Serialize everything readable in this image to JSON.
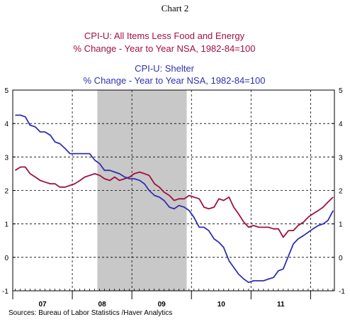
{
  "header": {
    "chart_label": "Chart 2"
  },
  "chart_data": {
    "type": "line",
    "title_lines": [
      {
        "text": "CPI-U: All Items Less Food and Energy",
        "series": 0
      },
      {
        "text": "% Change - Year to Year    NSA, 1982-84=100",
        "series": 0
      },
      {
        "text": "CPI-U: Shelter",
        "series": 1
      },
      {
        "text": "% Change - Year to Year    NSA, 1982-84=100",
        "series": 1
      }
    ],
    "source": "Sources:  Bureau of Labor Statistics /Haver Analytics",
    "ylim": [
      -1,
      5
    ],
    "yticks": [
      -1,
      0,
      1,
      2,
      3,
      4,
      5
    ],
    "xlim": [
      2006.5,
      2011.9
    ],
    "xtick_labels": [
      {
        "label": "07",
        "x": 2007.0
      },
      {
        "label": "08",
        "x": 2008.0
      },
      {
        "label": "09",
        "x": 2009.0
      },
      {
        "label": "10",
        "x": 2010.0
      },
      {
        "label": "11",
        "x": 2011.0
      }
    ],
    "year_boundaries": [
      2007.5,
      2008.5,
      2009.5,
      2010.5,
      2011.5
    ],
    "recession": [
      2007.92,
      2009.42
    ],
    "grid": "dashed",
    "colors": {
      "series_0": "#a01040",
      "series_1": "#3030b0",
      "recession": "#c8c8c8"
    },
    "series": [
      {
        "name": "CPI-U: All Items Less Food and Energy",
        "points": [
          [
            2006.54,
            2.6
          ],
          [
            2006.63,
            2.7
          ],
          [
            2006.71,
            2.7
          ],
          [
            2006.79,
            2.5
          ],
          [
            2006.88,
            2.4
          ],
          [
            2006.96,
            2.3
          ],
          [
            2007.04,
            2.25
          ],
          [
            2007.13,
            2.2
          ],
          [
            2007.21,
            2.2
          ],
          [
            2007.29,
            2.1
          ],
          [
            2007.38,
            2.1
          ],
          [
            2007.46,
            2.15
          ],
          [
            2007.54,
            2.2
          ],
          [
            2007.63,
            2.3
          ],
          [
            2007.71,
            2.4
          ],
          [
            2007.79,
            2.45
          ],
          [
            2007.88,
            2.5
          ],
          [
            2007.96,
            2.45
          ],
          [
            2008.04,
            2.35
          ],
          [
            2008.13,
            2.3
          ],
          [
            2008.21,
            2.4
          ],
          [
            2008.29,
            2.3
          ],
          [
            2008.38,
            2.35
          ],
          [
            2008.46,
            2.4
          ],
          [
            2008.54,
            2.5
          ],
          [
            2008.63,
            2.55
          ],
          [
            2008.71,
            2.5
          ],
          [
            2008.79,
            2.45
          ],
          [
            2008.88,
            2.2
          ],
          [
            2008.96,
            2.1
          ],
          [
            2009.04,
            1.95
          ],
          [
            2009.13,
            1.85
          ],
          [
            2009.21,
            1.7
          ],
          [
            2009.29,
            1.75
          ],
          [
            2009.38,
            1.75
          ],
          [
            2009.46,
            1.85
          ],
          [
            2009.54,
            1.8
          ],
          [
            2009.63,
            1.75
          ],
          [
            2009.71,
            1.5
          ],
          [
            2009.79,
            1.45
          ],
          [
            2009.88,
            1.5
          ],
          [
            2009.96,
            1.75
          ],
          [
            2010.04,
            1.7
          ],
          [
            2010.13,
            1.8
          ],
          [
            2010.21,
            1.5
          ],
          [
            2010.29,
            1.3
          ],
          [
            2010.38,
            1.05
          ],
          [
            2010.46,
            0.9
          ],
          [
            2010.54,
            0.95
          ],
          [
            2010.63,
            0.9
          ],
          [
            2010.71,
            0.9
          ],
          [
            2010.79,
            0.9
          ],
          [
            2010.88,
            0.85
          ],
          [
            2010.96,
            0.85
          ],
          [
            2011.04,
            0.6
          ],
          [
            2011.13,
            0.8
          ],
          [
            2011.21,
            0.8
          ],
          [
            2011.29,
            0.95
          ],
          [
            2011.38,
            1.05
          ],
          [
            2011.46,
            1.2
          ],
          [
            2011.54,
            1.3
          ],
          [
            2011.63,
            1.4
          ],
          [
            2011.71,
            1.5
          ],
          [
            2011.79,
            1.65
          ],
          [
            2011.88,
            1.8
          ]
        ]
      },
      {
        "name": "CPI-U: Shelter",
        "points": [
          [
            2006.54,
            4.25
          ],
          [
            2006.63,
            4.25
          ],
          [
            2006.71,
            4.2
          ],
          [
            2006.79,
            3.95
          ],
          [
            2006.88,
            3.9
          ],
          [
            2006.96,
            3.75
          ],
          [
            2007.04,
            3.75
          ],
          [
            2007.13,
            3.65
          ],
          [
            2007.21,
            3.45
          ],
          [
            2007.29,
            3.4
          ],
          [
            2007.38,
            3.25
          ],
          [
            2007.46,
            3.1
          ],
          [
            2007.54,
            3.1
          ],
          [
            2007.63,
            3.1
          ],
          [
            2007.71,
            3.1
          ],
          [
            2007.79,
            3.1
          ],
          [
            2007.88,
            2.9
          ],
          [
            2007.96,
            2.8
          ],
          [
            2008.04,
            2.6
          ],
          [
            2008.13,
            2.6
          ],
          [
            2008.21,
            2.55
          ],
          [
            2008.29,
            2.5
          ],
          [
            2008.38,
            2.4
          ],
          [
            2008.46,
            2.35
          ],
          [
            2008.54,
            2.35
          ],
          [
            2008.63,
            2.3
          ],
          [
            2008.71,
            2.2
          ],
          [
            2008.79,
            2.0
          ],
          [
            2008.88,
            1.85
          ],
          [
            2008.96,
            1.8
          ],
          [
            2009.04,
            1.7
          ],
          [
            2009.13,
            1.5
          ],
          [
            2009.21,
            1.45
          ],
          [
            2009.29,
            1.55
          ],
          [
            2009.38,
            1.5
          ],
          [
            2009.46,
            1.4
          ],
          [
            2009.54,
            1.2
          ],
          [
            2009.63,
            0.9
          ],
          [
            2009.71,
            0.9
          ],
          [
            2009.79,
            0.8
          ],
          [
            2009.88,
            0.55
          ],
          [
            2009.96,
            0.45
          ],
          [
            2010.04,
            0.3
          ],
          [
            2010.13,
            -0.1
          ],
          [
            2010.21,
            -0.3
          ],
          [
            2010.29,
            -0.5
          ],
          [
            2010.38,
            -0.65
          ],
          [
            2010.46,
            -0.75
          ],
          [
            2010.54,
            -0.7
          ],
          [
            2010.63,
            -0.7
          ],
          [
            2010.71,
            -0.7
          ],
          [
            2010.79,
            -0.65
          ],
          [
            2010.88,
            -0.6
          ],
          [
            2010.96,
            -0.4
          ],
          [
            2011.04,
            -0.35
          ],
          [
            2011.13,
            0.05
          ],
          [
            2011.21,
            0.4
          ],
          [
            2011.29,
            0.55
          ],
          [
            2011.38,
            0.65
          ],
          [
            2011.46,
            0.75
          ],
          [
            2011.54,
            0.85
          ],
          [
            2011.63,
            0.95
          ],
          [
            2011.71,
            1.0
          ],
          [
            2011.79,
            1.1
          ],
          [
            2011.88,
            1.4
          ]
        ]
      }
    ]
  }
}
